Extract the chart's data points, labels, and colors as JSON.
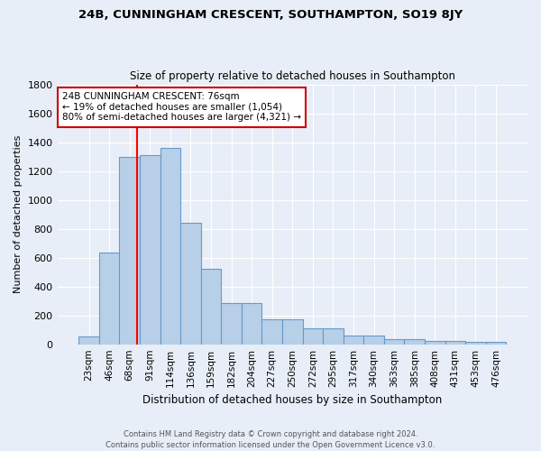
{
  "title": "24B, CUNNINGHAM CRESCENT, SOUTHAMPTON, SO19 8JY",
  "subtitle": "Size of property relative to detached houses in Southampton",
  "xlabel": "Distribution of detached houses by size in Southampton",
  "ylabel": "Number of detached properties",
  "footer_line1": "Contains HM Land Registry data © Crown copyright and database right 2024.",
  "footer_line2": "Contains public sector information licensed under the Open Government Licence v3.0.",
  "categories": [
    "23sqm",
    "46sqm",
    "68sqm",
    "91sqm",
    "114sqm",
    "136sqm",
    "159sqm",
    "182sqm",
    "204sqm",
    "227sqm",
    "250sqm",
    "272sqm",
    "295sqm",
    "317sqm",
    "340sqm",
    "363sqm",
    "385sqm",
    "408sqm",
    "431sqm",
    "453sqm",
    "476sqm"
  ],
  "values": [
    55,
    638,
    1300,
    1310,
    1360,
    840,
    520,
    285,
    285,
    175,
    175,
    108,
    108,
    63,
    63,
    38,
    38,
    22,
    22,
    14,
    14
  ],
  "bar_color": "#b8cfe8",
  "bar_edge_color": "#6699cc",
  "bg_color": "#e8eef7",
  "grid_color": "#ffffff",
  "annotation_text_line1": "24B CUNNINGHAM CRESCENT: 76sqm",
  "annotation_text_line2": "← 19% of detached houses are smaller (1,054)",
  "annotation_text_line3": "80% of semi-detached houses are larger (4,321) →",
  "annotation_box_facecolor": "#ffffff",
  "annotation_box_edgecolor": "#cc0000",
  "red_line_index": 2.35,
  "ylim": [
    0,
    1800
  ],
  "yticks": [
    0,
    200,
    400,
    600,
    800,
    1000,
    1200,
    1400,
    1600,
    1800
  ]
}
